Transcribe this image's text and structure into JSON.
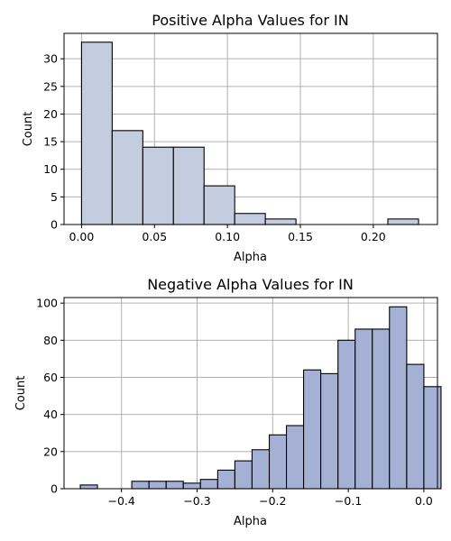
{
  "chart_data": [
    {
      "type": "bar",
      "title": "Positive Alpha Values for IN",
      "xlabel": "Alpha",
      "ylabel": "Count",
      "bar_color": "#c4cde0",
      "edge_color": "#000000",
      "grid": true,
      "xlim": [
        -0.012,
        0.244
      ],
      "ylim": [
        0,
        34.6
      ],
      "xticks": [
        0.0,
        0.05,
        0.1,
        0.15,
        0.2
      ],
      "xtick_labels": [
        "0.00",
        "0.05",
        "0.10",
        "0.15",
        "0.20"
      ],
      "yticks": [
        0,
        5,
        10,
        15,
        20,
        25,
        30
      ],
      "ytick_labels": [
        "0",
        "5",
        "10",
        "15",
        "20",
        "25",
        "30"
      ],
      "bins": [
        {
          "x0": 0.0,
          "x1": 0.021,
          "count": 33
        },
        {
          "x0": 0.021,
          "x1": 0.042,
          "count": 17
        },
        {
          "x0": 0.042,
          "x1": 0.063,
          "count": 14
        },
        {
          "x0": 0.063,
          "x1": 0.084,
          "count": 14
        },
        {
          "x0": 0.084,
          "x1": 0.105,
          "count": 7
        },
        {
          "x0": 0.105,
          "x1": 0.126,
          "count": 2
        },
        {
          "x0": 0.126,
          "x1": 0.147,
          "count": 1
        },
        {
          "x0": 0.147,
          "x1": 0.168,
          "count": 0
        },
        {
          "x0": 0.168,
          "x1": 0.189,
          "count": 0
        },
        {
          "x0": 0.189,
          "x1": 0.21,
          "count": 0
        },
        {
          "x0": 0.21,
          "x1": 0.231,
          "count": 1
        }
      ]
    },
    {
      "type": "bar",
      "title": "Negative Alpha Values for IN",
      "xlabel": "Alpha",
      "ylabel": "Count",
      "bar_color": "#a5b1d4",
      "edge_color": "#000000",
      "grid": true,
      "xlim": [
        -0.476,
        0.018
      ],
      "ylim": [
        0,
        103
      ],
      "xticks": [
        -0.4,
        -0.3,
        -0.2,
        -0.1,
        0.0
      ],
      "xtick_labels": [
        "−0.4",
        "−0.3",
        "−0.2",
        "−0.1",
        "0.0"
      ],
      "yticks": [
        0,
        20,
        40,
        60,
        80,
        100
      ],
      "ytick_labels": [
        "0",
        "20",
        "40",
        "60",
        "80",
        "100"
      ],
      "bins": [
        {
          "x0": -0.4545,
          "x1": -0.4318,
          "count": 2
        },
        {
          "x0": -0.4318,
          "x1": -0.4091,
          "count": 0
        },
        {
          "x0": -0.4091,
          "x1": -0.3864,
          "count": 0
        },
        {
          "x0": -0.3864,
          "x1": -0.3636,
          "count": 4
        },
        {
          "x0": -0.3636,
          "x1": -0.3409,
          "count": 4
        },
        {
          "x0": -0.3409,
          "x1": -0.3182,
          "count": 4
        },
        {
          "x0": -0.3182,
          "x1": -0.2955,
          "count": 3
        },
        {
          "x0": -0.2955,
          "x1": -0.2727,
          "count": 5
        },
        {
          "x0": -0.2727,
          "x1": -0.25,
          "count": 10
        },
        {
          "x0": -0.25,
          "x1": -0.2273,
          "count": 15
        },
        {
          "x0": -0.2273,
          "x1": -0.2045,
          "count": 21
        },
        {
          "x0": -0.2045,
          "x1": -0.1818,
          "count": 29
        },
        {
          "x0": -0.1818,
          "x1": -0.1591,
          "count": 34
        },
        {
          "x0": -0.1591,
          "x1": -0.1364,
          "count": 64
        },
        {
          "x0": -0.1364,
          "x1": -0.1136,
          "count": 62
        },
        {
          "x0": -0.1136,
          "x1": -0.0909,
          "count": 80
        },
        {
          "x0": -0.0909,
          "x1": -0.0682,
          "count": 86
        },
        {
          "x0": -0.0682,
          "x1": -0.0455,
          "count": 86
        },
        {
          "x0": -0.0455,
          "x1": -0.0227,
          "count": 98
        },
        {
          "x0": -0.0227,
          "x1": 0.0,
          "count": 67
        },
        {
          "x0": 0.0,
          "x1": 0.0227,
          "count": 55
        }
      ]
    }
  ]
}
